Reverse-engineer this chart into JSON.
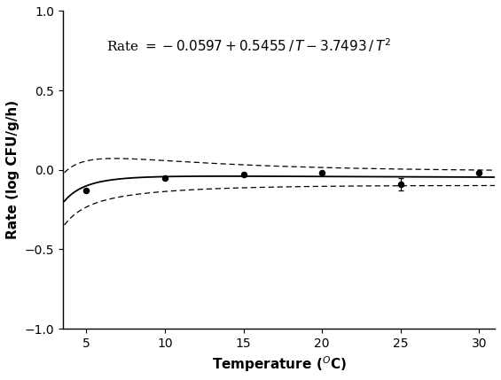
{
  "a0": -0.0597,
  "a1": 0.5455,
  "a2": -3.7493,
  "obs_T": [
    5,
    10,
    15,
    20,
    25,
    30
  ],
  "obs_rate": [
    -0.13,
    -0.05,
    -0.03,
    -0.02,
    -0.09,
    -0.02
  ],
  "obs_err_up": [
    0.0,
    0.0,
    0.0,
    0.0,
    0.04,
    0.0
  ],
  "obs_err_dn": [
    0.0,
    0.0,
    0.0,
    0.0,
    0.04,
    0.0
  ],
  "xlim": [
    3.5,
    31
  ],
  "ylim": [
    -1.0,
    1.0
  ],
  "xticks": [
    5,
    10,
    15,
    20,
    25,
    30
  ],
  "yticks": [
    -1.0,
    -0.5,
    0.0,
    0.5,
    1.0
  ],
  "xlabel": "Temperature ($^O$C)",
  "ylabel": "Rate (log CFU/g/h)",
  "ci_a": 0.14,
  "ci_b": 0.25,
  "ci_c": 0.03,
  "ci_asym": 0.07
}
